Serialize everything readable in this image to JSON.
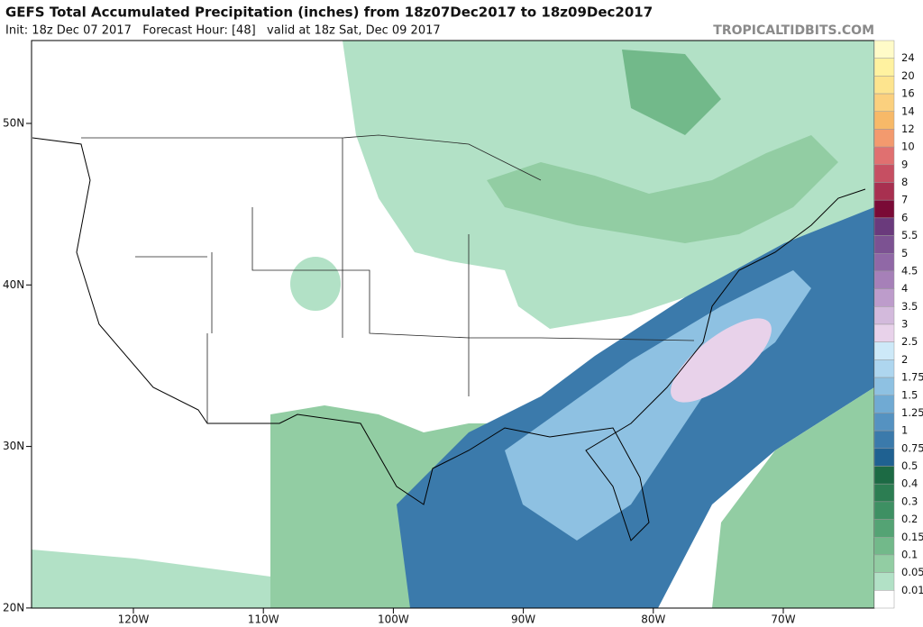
{
  "header": {
    "title": "GEFS Total Accumulated Precipitation (inches) from 18z07Dec2017 to 18z09Dec2017",
    "subtitle": "Init: 18z Dec 07 2017   Forecast Hour: [48]   valid at 18z Sat, Dec 09 2017",
    "site": "TROPICALTIDBITS.COM"
  },
  "map": {
    "lat_labels": [
      "50N",
      "40N",
      "30N",
      "20N"
    ],
    "lon_labels": [
      "120W",
      "110W",
      "100W",
      "90W",
      "80W",
      "70W"
    ]
  },
  "colorbar": {
    "labels": [
      "24",
      "20",
      "16",
      "14",
      "12",
      "10",
      "9",
      "8",
      "7",
      "6",
      "5.5",
      "5",
      "4.5",
      "4",
      "3.5",
      "3",
      "2.5",
      "2",
      "1.75",
      "1.5",
      "1.25",
      "1",
      "0.75",
      "0.5",
      "0.4",
      "0.3",
      "0.2",
      "0.15",
      "0.1",
      "0.05",
      "0.01"
    ],
    "colors": [
      "#fffbc8",
      "#fff2a0",
      "#fde48e",
      "#fbd07e",
      "#f7b968",
      "#f39a6e",
      "#e07070",
      "#c64f62",
      "#a83050",
      "#7a0a36",
      "#6a3a7c",
      "#7c5292",
      "#9068a6",
      "#a680b8",
      "#bd9ccb",
      "#d3badc",
      "#e8d2ea",
      "#cde9f8",
      "#aed6ef",
      "#8ec1e2",
      "#70aad3",
      "#5592c1",
      "#3b7aab",
      "#1f6191",
      "#1c6a44",
      "#2c7d52",
      "#3e9063",
      "#54a374",
      "#72b98a",
      "#92cda3",
      "#b2e1c6",
      "#ffffff"
    ]
  }
}
